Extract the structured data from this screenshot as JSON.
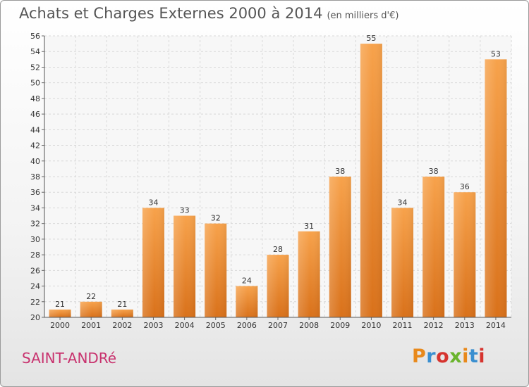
{
  "header": {
    "title": "Achats et Charges Externes 2000 à 2014",
    "unit": "(en milliers d'€)"
  },
  "footer": {
    "commune": "SAINT-ANDRé",
    "logo": "Proxiti",
    "logo_colors": [
      "#e8891b",
      "#3a8fd0",
      "#d6342f",
      "#6ab42d",
      "#e8891b",
      "#3a8fd0",
      "#d6342f"
    ]
  },
  "chart_data": {
    "type": "bar",
    "categories": [
      "2000",
      "2001",
      "2002",
      "2003",
      "2004",
      "2005",
      "2006",
      "2007",
      "2008",
      "2009",
      "2010",
      "2011",
      "2012",
      "2013",
      "2014"
    ],
    "values": [
      21,
      22,
      21,
      34,
      33,
      32,
      24,
      28,
      31,
      38,
      55,
      34,
      38,
      36,
      53
    ],
    "ylim": [
      20,
      56
    ],
    "ytick_step": 2,
    "grid": true,
    "bar_color": "#f0892a"
  }
}
